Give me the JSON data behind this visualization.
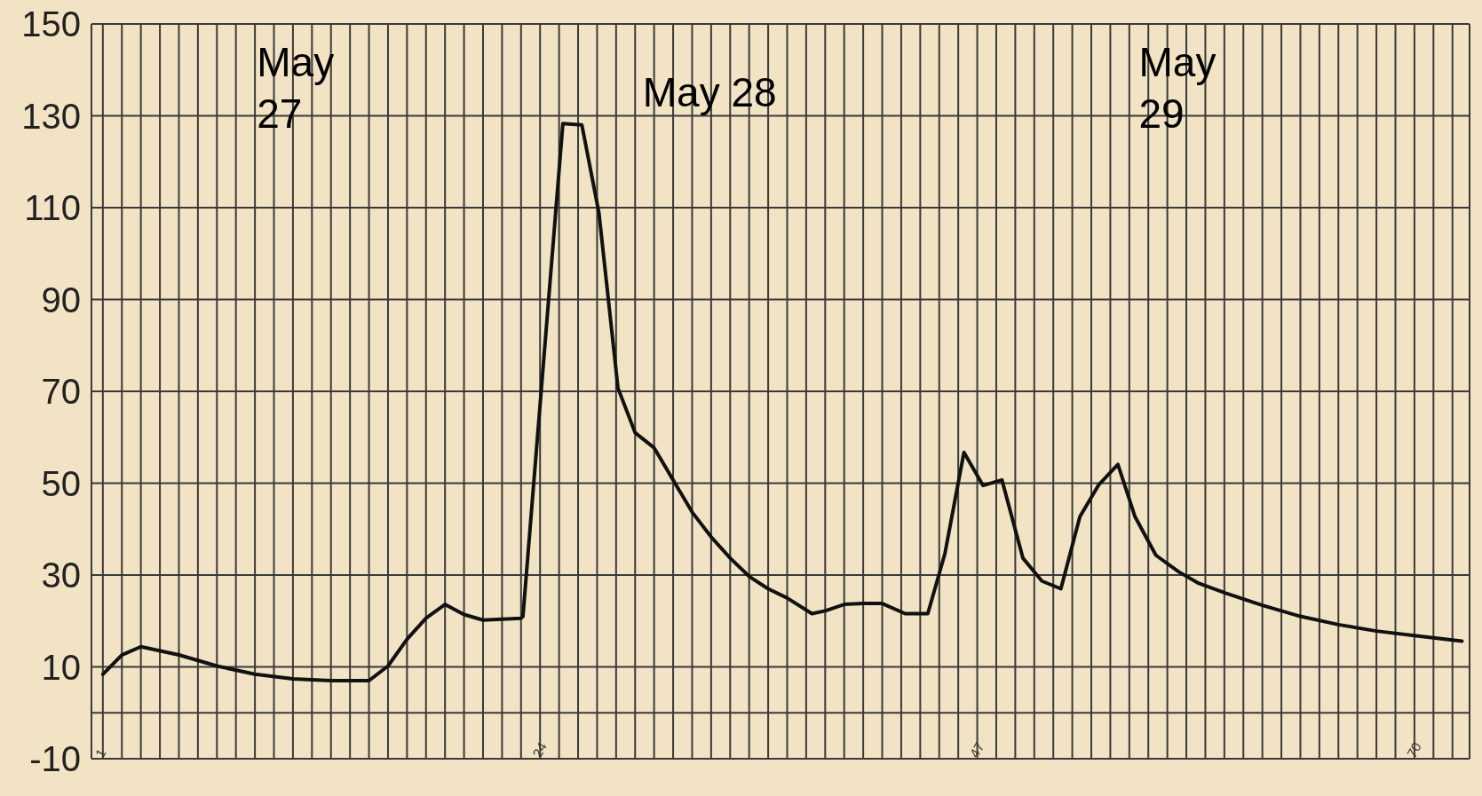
{
  "chart_data": {
    "type": "line",
    "annotations": [
      "May\n27",
      "May 28",
      "May\n29"
    ],
    "xlim": [
      0.4,
      72.9
    ],
    "xticks": [
      {
        "value": 1,
        "label": "1"
      },
      {
        "value": 2,
        "label": null
      },
      {
        "value": 3,
        "label": null
      },
      {
        "value": 4,
        "label": null
      },
      {
        "value": 5,
        "label": null
      },
      {
        "value": 6,
        "label": null
      },
      {
        "value": 7,
        "label": null
      },
      {
        "value": 8,
        "label": null
      },
      {
        "value": 9,
        "label": null
      },
      {
        "value": 10,
        "label": null
      },
      {
        "value": 11,
        "label": null
      },
      {
        "value": 12,
        "label": null
      },
      {
        "value": 13,
        "label": null
      },
      {
        "value": 14,
        "label": null
      },
      {
        "value": 15,
        "label": null
      },
      {
        "value": 16,
        "label": null
      },
      {
        "value": 17,
        "label": null
      },
      {
        "value": 18,
        "label": null
      },
      {
        "value": 19,
        "label": null
      },
      {
        "value": 20,
        "label": null
      },
      {
        "value": 21,
        "label": null
      },
      {
        "value": 22,
        "label": null
      },
      {
        "value": 23,
        "label": null
      },
      {
        "value": 24,
        "label": "24"
      },
      {
        "value": 25,
        "label": null
      },
      {
        "value": 26,
        "label": null
      },
      {
        "value": 27,
        "label": null
      },
      {
        "value": 28,
        "label": null
      },
      {
        "value": 29,
        "label": null
      },
      {
        "value": 30,
        "label": null
      },
      {
        "value": 31,
        "label": null
      },
      {
        "value": 32,
        "label": null
      },
      {
        "value": 33,
        "label": null
      },
      {
        "value": 34,
        "label": null
      },
      {
        "value": 35,
        "label": null
      },
      {
        "value": 36,
        "label": null
      },
      {
        "value": 37,
        "label": null
      },
      {
        "value": 38,
        "label": null
      },
      {
        "value": 39,
        "label": null
      },
      {
        "value": 40,
        "label": null
      },
      {
        "value": 41,
        "label": null
      },
      {
        "value": 42,
        "label": null
      },
      {
        "value": 43,
        "label": null
      },
      {
        "value": 44,
        "label": null
      },
      {
        "value": 45,
        "label": null
      },
      {
        "value": 46,
        "label": null
      },
      {
        "value": 47,
        "label": "47"
      },
      {
        "value": 48,
        "label": null
      },
      {
        "value": 49,
        "label": null
      },
      {
        "value": 50,
        "label": null
      },
      {
        "value": 51,
        "label": null
      },
      {
        "value": 52,
        "label": null
      },
      {
        "value": 53,
        "label": null
      },
      {
        "value": 54,
        "label": null
      },
      {
        "value": 55,
        "label": null
      },
      {
        "value": 56,
        "label": null
      },
      {
        "value": 57,
        "label": null
      },
      {
        "value": 58,
        "label": null
      },
      {
        "value": 59,
        "label": null
      },
      {
        "value": 60,
        "label": null
      },
      {
        "value": 61,
        "label": null
      },
      {
        "value": 62,
        "label": null
      },
      {
        "value": 63,
        "label": null
      },
      {
        "value": 64,
        "label": null
      },
      {
        "value": 65,
        "label": null
      },
      {
        "value": 66,
        "label": null
      },
      {
        "value": 67,
        "label": null
      },
      {
        "value": 68,
        "label": null
      },
      {
        "value": 69,
        "label": null
      },
      {
        "value": 70,
        "label": "70"
      },
      {
        "value": 71,
        "label": null
      },
      {
        "value": 72,
        "label": null
      }
    ],
    "ylim": [
      -10,
      150
    ],
    "yticks": [
      -10,
      {
        "value": 0,
        "label": null
      },
      10,
      30,
      50,
      70,
      90,
      110,
      130,
      150
    ],
    "grid": true,
    "marker": "none",
    "line_style": "solid",
    "series": [
      {
        "color": "#111111",
        "x": [
          1,
          2,
          3,
          5,
          7,
          9,
          11,
          13,
          15,
          16,
          17,
          18,
          19,
          20,
          21,
          23,
          23.1,
          25.2,
          26.2,
          27.1,
          28.1,
          29,
          30,
          31,
          32,
          33,
          34,
          35,
          36,
          37,
          38.3,
          39,
          40,
          41,
          42,
          43.2,
          44.4,
          45.3,
          46.3,
          47.3,
          48.3,
          49.4,
          50.4,
          51.4,
          52.4,
          53.4,
          54.4,
          55.3,
          56.4,
          57.6,
          58.6,
          60.1,
          62,
          64,
          66,
          68,
          70,
          72.5
        ],
        "values": [
          8.4,
          12.6,
          14.4,
          12.6,
          10.2,
          8.4,
          7.4,
          7,
          7,
          10.2,
          16,
          20.6,
          23.6,
          21.4,
          20.2,
          20.6,
          21,
          128.3,
          128,
          108.8,
          70.7,
          61,
          57.7,
          50.7,
          43.7,
          38.3,
          33.7,
          29.7,
          27,
          25,
          21.6,
          22.2,
          23.6,
          23.8,
          23.8,
          21.6,
          21.6,
          34.7,
          56.7,
          49.5,
          50.7,
          33.7,
          28.7,
          27,
          42.7,
          49.7,
          54.1,
          42.7,
          34.3,
          30.7,
          28.3,
          26,
          23.4,
          21,
          19.2,
          17.8,
          16.8,
          15.6
        ]
      }
    ]
  }
}
